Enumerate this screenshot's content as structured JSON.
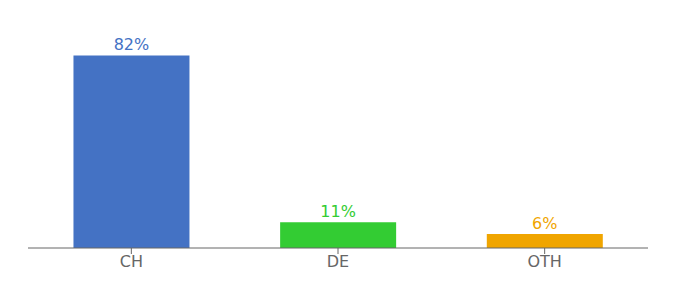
{
  "chart_data": {
    "type": "bar",
    "categories": [
      "CH",
      "DE",
      "OTH"
    ],
    "values": [
      82,
      11,
      6
    ],
    "value_labels": [
      "82%",
      "11%",
      "6%"
    ],
    "colors": [
      "#4472c4",
      "#33cc33",
      "#f0a500"
    ],
    "ylim": [
      0,
      92
    ],
    "data_labels": true,
    "tick_labels": "x",
    "grid": false
  }
}
